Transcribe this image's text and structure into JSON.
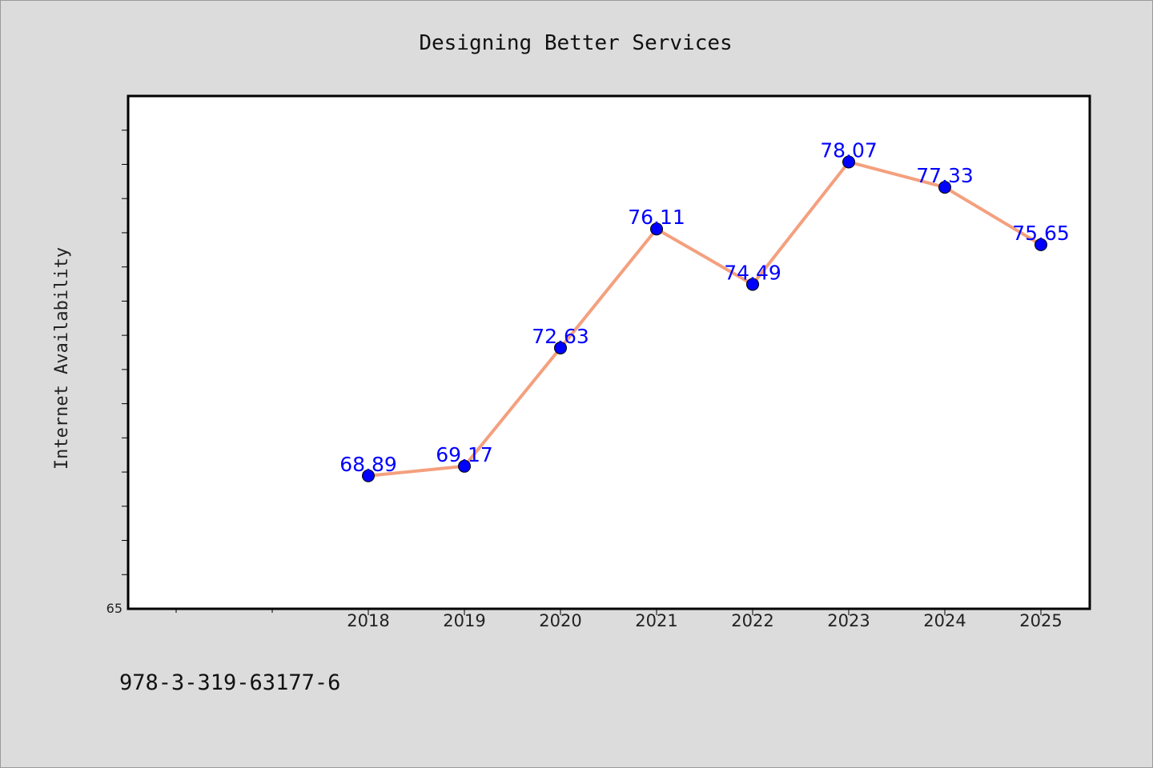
{
  "chart_data": {
    "type": "line",
    "title": "Designing Better Services",
    "ylabel": "Internet Availability",
    "xlabel": "",
    "categories": [
      "2018",
      "2019",
      "2020",
      "2021",
      "2022",
      "2023",
      "2024",
      "2025"
    ],
    "series": [
      {
        "values": [
          68.89,
          69.17,
          72.63,
          76.11,
          74.49,
          78.07,
          77.33,
          75.65
        ],
        "data_labels": [
          "68.89",
          "69.17",
          "72.63",
          "76.11",
          "74.49",
          "78.07",
          "77.33",
          "75.65"
        ]
      }
    ],
    "ylim": [
      65,
      80
    ],
    "y_tick_labels": [
      "65"
    ],
    "grid": false,
    "legend": "none",
    "colors": {
      "line": "#f4a07e",
      "marker": "#0000ff",
      "marker_edge": "#000000",
      "data_label": "#0000ff",
      "plot_background": "#ffffff",
      "figure_background": "#dcdcdc"
    }
  },
  "footer": {
    "isbn": "978-3-319-63177-6"
  }
}
